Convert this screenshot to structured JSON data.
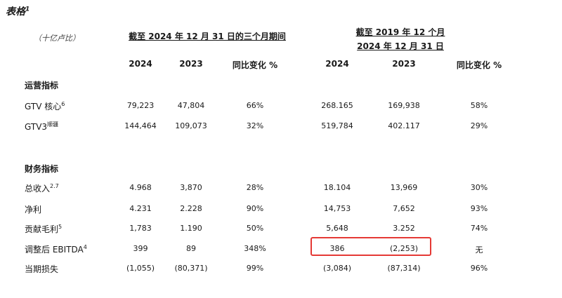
{
  "title": "表格",
  "title_sup": "1",
  "unit": "（十亿卢比）",
  "header_left": "截至 2024 年 12 月 31 日的三个月期间",
  "header_right_line1": "截至 2019 年 12 个月",
  "header_right_line2": "2024 年 12 月 31 日",
  "columns": [
    "2024",
    "2023",
    "同比变化 %",
    "2024",
    "2023",
    "同比变化 %"
  ],
  "sections": {
    "operating": "运营指标",
    "financial": "财务指标"
  },
  "rows": [
    {
      "label": "GTV 核心",
      "sup": "6",
      "values": [
        "79,223",
        "47,804",
        "66%",
        "268.165",
        "169,938",
        "58%"
      ]
    },
    {
      "label": "GTV3",
      "sup": "顺疆",
      "values": [
        "144,464",
        "109,073",
        "32%",
        "519,784",
        "402.117",
        "29%"
      ]
    },
    {
      "label": "总收入",
      "sup": "2.7",
      "values": [
        "4.968",
        "3,870",
        "28%",
        "18.104",
        "13,969",
        "30%"
      ]
    },
    {
      "label": "净利",
      "sup": "",
      "values": [
        "4.231",
        "2.228",
        "90%",
        "14,753",
        "7,652",
        "93%"
      ]
    },
    {
      "label": "贡献毛利",
      "sup": "5",
      "values": [
        "1,783",
        "1.190",
        "50%",
        "5,648",
        "3.252",
        "74%"
      ]
    },
    {
      "label": "调整后 EBITDA",
      "sup": "4",
      "values": [
        "399",
        "89",
        "348%",
        "386",
        "(2,253)",
        "无"
      ]
    },
    {
      "label": "当期损失",
      "sup": "",
      "values": [
        "(1,055)",
        "(80,371)",
        "99%",
        "(3,084)",
        "(87,314)",
        "96%"
      ]
    }
  ],
  "colors": {
    "highlight": "#e53935"
  }
}
